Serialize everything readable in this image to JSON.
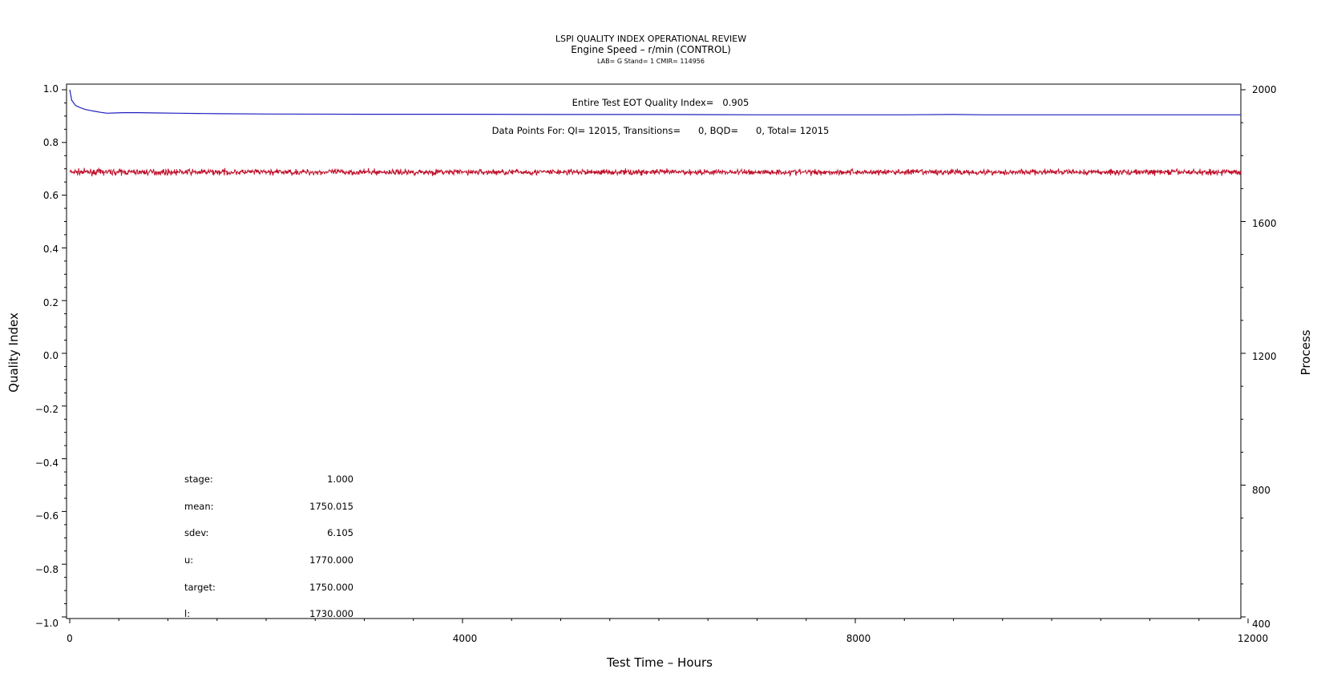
{
  "chart_data": {
    "type": "line",
    "title": "LSPI QUALITY INDEX OPERATIONAL REVIEW",
    "subtitle": "Engine Speed – r/min (CONTROL)",
    "subtitle2": "LAB= G Stand= 1 CMIR= 114956",
    "xlabel": "Test Time – Hours",
    "ylabel": "Quality Index",
    "y2label": "Process",
    "xlim": [
      0,
      12000
    ],
    "ylim": [
      -1.0,
      1.0
    ],
    "y2lim": [
      400,
      2000
    ],
    "x_ticks": [
      "0",
      "4000",
      "8000",
      "12000"
    ],
    "y_ticks": [
      "1.0",
      "0.8",
      "0.6",
      "0.4",
      "0.2",
      "0.0",
      "−0.2",
      "−0.4",
      "−0.6",
      "−0.8",
      "−1.0"
    ],
    "y2_ticks": [
      "2000",
      "1600",
      "1200",
      "800",
      "400"
    ],
    "grid": false,
    "annotations": {
      "qi_text": "Entire Test EOT Quality Index=   0.905",
      "points_text": "Data Points For: QI= 12015, Transitions=      0, BQD=      0, Total= 12015"
    },
    "stats": [
      {
        "label": "stage:",
        "value": "1.000"
      },
      {
        "label": "mean:",
        "value": "1750.015"
      },
      {
        "label": "sdev:",
        "value": "6.105"
      },
      {
        "label": "u:",
        "value": "1770.000"
      },
      {
        "label": "target:",
        "value": "1750.000"
      },
      {
        "label": "l:",
        "value": "1730.000"
      }
    ],
    "series": [
      {
        "axis": "left",
        "color": "#2020c0",
        "x": [
          0,
          20,
          40,
          60,
          90,
          120,
          160,
          200,
          260,
          320,
          380,
          450,
          550,
          700,
          900,
          1100,
          1300,
          1500,
          2000,
          3000,
          4000,
          5000,
          6000,
          7000,
          8000,
          8500,
          9000,
          9300,
          10000,
          11000,
          12000
        ],
        "y": [
          1.0,
          0.96,
          0.95,
          0.94,
          0.935,
          0.93,
          0.925,
          0.922,
          0.918,
          0.914,
          0.911,
          0.912,
          0.913,
          0.913,
          0.912,
          0.911,
          0.91,
          0.909,
          0.908,
          0.907,
          0.907,
          0.906,
          0.906,
          0.905,
          0.905,
          0.905,
          0.906,
          0.905,
          0.905,
          0.905,
          0.905
        ]
      },
      {
        "axis": "right",
        "color": "#c0102a",
        "mean": 1750.015,
        "sdev": 6.105,
        "n": 12015,
        "x_range": [
          0,
          12000
        ]
      }
    ]
  }
}
